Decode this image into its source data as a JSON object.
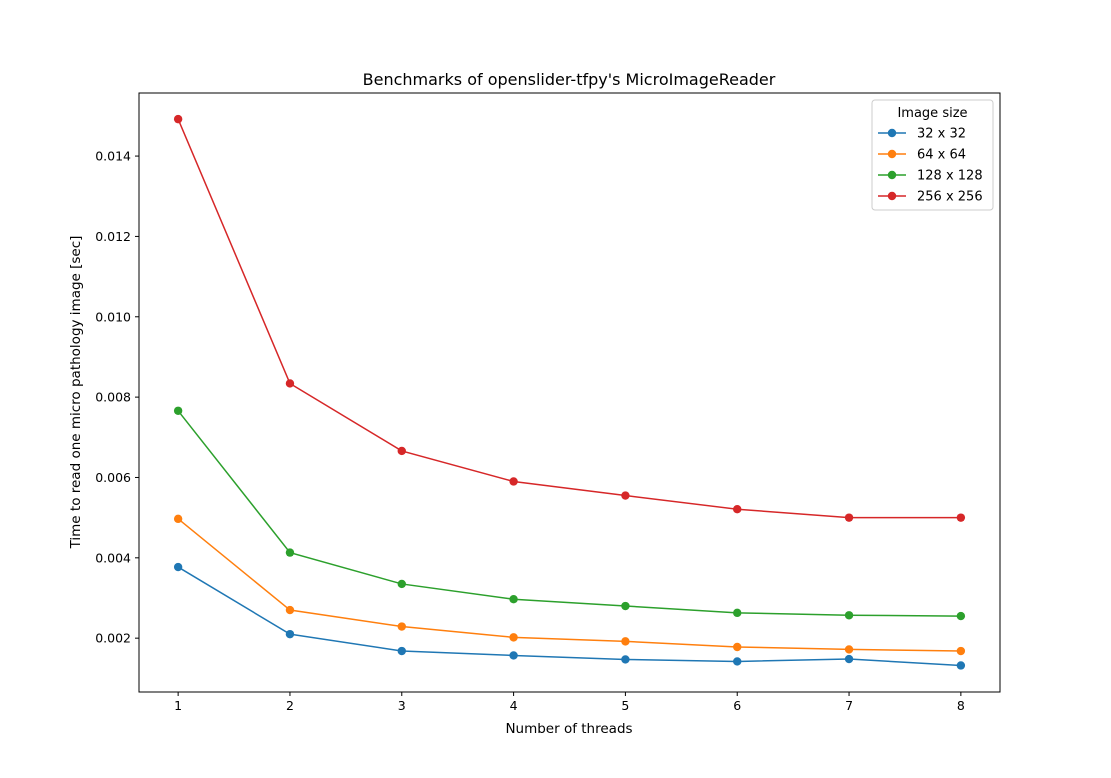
{
  "chart_data": {
    "type": "line",
    "title": "Benchmarks of openslider-tfpy's MicroImageReader",
    "xlabel": "Number of threads",
    "ylabel": "Time to read one micro pathology image [sec]",
    "x": [
      1,
      2,
      3,
      4,
      5,
      6,
      7,
      8
    ],
    "xlim": [
      0.65,
      8.35
    ],
    "ylim": [
      0.00066,
      0.01557
    ],
    "x_ticks": [
      "1",
      "2",
      "3",
      "4",
      "5",
      "6",
      "7",
      "8"
    ],
    "y_ticks": [
      "0.002",
      "0.004",
      "0.006",
      "0.008",
      "0.010",
      "0.012",
      "0.014"
    ],
    "y_tick_values": [
      0.002,
      0.004,
      0.006,
      0.008,
      0.01,
      0.012,
      0.014
    ],
    "legend_title": "Image size",
    "legend_position": "top-right",
    "grid": false,
    "marker": "circle",
    "series": [
      {
        "name": "32 x 32",
        "color": "#1f77b4",
        "values": [
          0.00377,
          0.0021,
          0.00168,
          0.00157,
          0.00147,
          0.00142,
          0.00148,
          0.00132
        ]
      },
      {
        "name": "64 x 64",
        "color": "#ff7f0e",
        "values": [
          0.00497,
          0.0027,
          0.00229,
          0.00202,
          0.00192,
          0.00178,
          0.00172,
          0.00168
        ]
      },
      {
        "name": "128 x 128",
        "color": "#2ca02c",
        "values": [
          0.00766,
          0.00413,
          0.00335,
          0.00297,
          0.0028,
          0.00263,
          0.00257,
          0.00255
        ]
      },
      {
        "name": "256 x 256",
        "color": "#d62728",
        "values": [
          0.01492,
          0.00834,
          0.00666,
          0.0059,
          0.00555,
          0.00521,
          0.005,
          0.005
        ]
      }
    ]
  }
}
